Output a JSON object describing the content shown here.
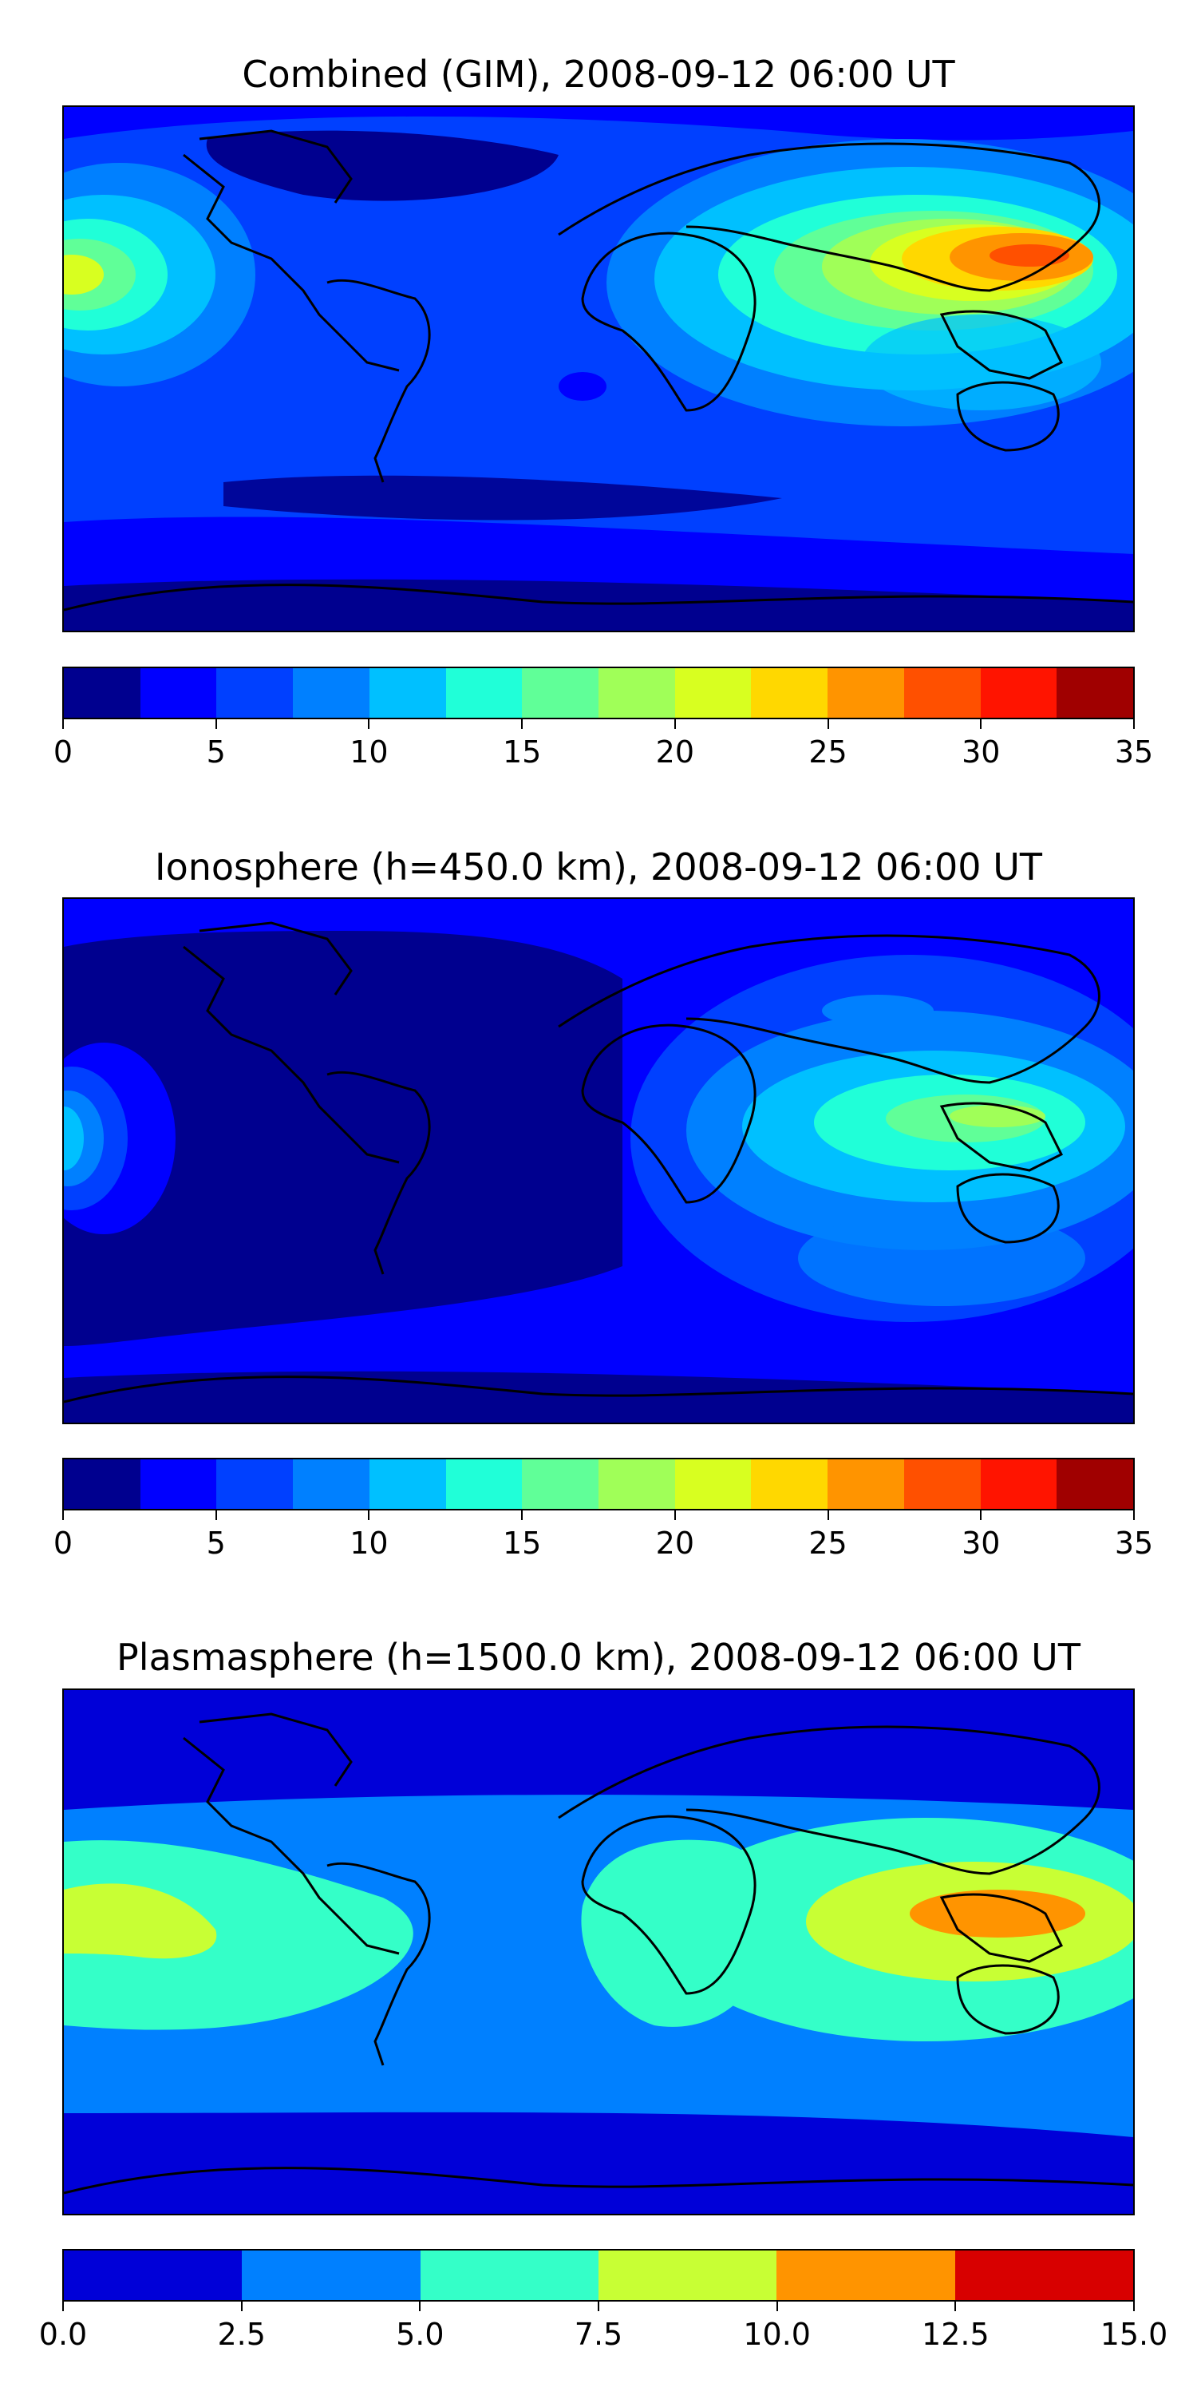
{
  "panels": [
    {
      "title": "Combined (GIM), 2008-09-12 06:00 UT",
      "colorbar_ticks": [
        "0",
        "5",
        "10",
        "15",
        "20",
        "25",
        "30",
        "35"
      ],
      "levels": [
        0,
        2.5,
        5,
        7.5,
        10,
        12.5,
        15,
        17.5,
        20,
        22.5,
        25,
        27.5,
        30,
        32.5,
        35
      ],
      "colors": [
        "#00008f",
        "#0000ff",
        "#0040ff",
        "#0080ff",
        "#00c0ff",
        "#20ffd8",
        "#60ff98",
        "#a0ff58",
        "#d8ff20",
        "#ffd800",
        "#ff9400",
        "#ff5000",
        "#ff1400",
        "#a00000"
      ]
    },
    {
      "title": "Ionosphere  (h=450.0 km), 2008-09-12 06:00 UT",
      "colorbar_ticks": [
        "0",
        "5",
        "10",
        "15",
        "20",
        "25",
        "30",
        "35"
      ],
      "levels": [
        0,
        2.5,
        5,
        7.5,
        10,
        12.5,
        15,
        17.5,
        20,
        22.5,
        25,
        27.5,
        30,
        32.5,
        35
      ],
      "colors": [
        "#00008f",
        "#0000ff",
        "#0040ff",
        "#0080ff",
        "#00c0ff",
        "#20ffd8",
        "#60ff98",
        "#a0ff58",
        "#d8ff20",
        "#ffd800",
        "#ff9400",
        "#ff5000",
        "#ff1400",
        "#a00000"
      ]
    },
    {
      "title": "Plasmasphere (h=1500.0 km), 2008-09-12 06:00 UT",
      "colorbar_ticks": [
        "0.0",
        "2.5",
        "5.0",
        "7.5",
        "10.0",
        "12.5",
        "15.0"
      ],
      "levels": [
        0,
        2.5,
        5,
        7.5,
        10,
        12.5,
        15
      ],
      "colors": [
        "#0000d8",
        "#0080ff",
        "#34ffc8",
        "#c8ff34",
        "#ff9400",
        "#d80000"
      ]
    }
  ]
}
